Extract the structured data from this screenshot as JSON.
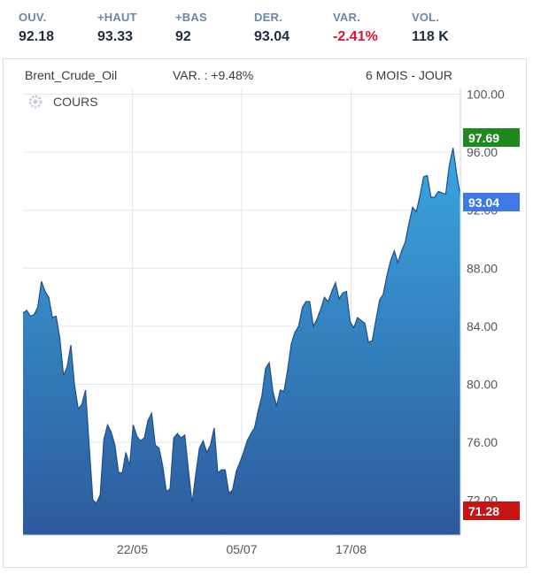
{
  "stats": [
    {
      "label": "OUV.",
      "value": "92.18"
    },
    {
      "label": "+HAUT",
      "value": "93.33"
    },
    {
      "label": "+BAS",
      "value": "92"
    },
    {
      "label": "DER.",
      "value": "93.04"
    },
    {
      "label": "VAR.",
      "value": "-2.41%"
    },
    {
      "label": "VOL.",
      "value": "118 K"
    }
  ],
  "header": {
    "instrument": "Brent_Crude_Oil",
    "variation": "VAR. : +9.48%",
    "period": "6 MOIS - JOUR"
  },
  "legend": {
    "label": "COURS"
  },
  "colors": {
    "high": "#1e8a1e",
    "last": "#3f79e6",
    "low": "#c81414",
    "negative": "#e2112f",
    "area_top": "#3aa6df",
    "area_bottom": "#2d5a9c"
  },
  "chart_data": {
    "type": "area",
    "series": [
      {
        "name": "COURS",
        "values": [
          84.9,
          85.1,
          84.7,
          84.8,
          85.3,
          87.1,
          86.4,
          86.0,
          84.6,
          84.7,
          83.2,
          80.6,
          81.2,
          82.7,
          80.0,
          78.3,
          78.6,
          79.6,
          75.8,
          72.0,
          71.8,
          72.4,
          76.2,
          77.2,
          76.7,
          75.8,
          73.9,
          73.9,
          75.3,
          74.4,
          77.2,
          76.4,
          76.1,
          76.3,
          77.5,
          78.0,
          75.8,
          75.6,
          74.4,
          72.6,
          72.8,
          76.3,
          76.6,
          76.3,
          76.5,
          74.1,
          71.8,
          73.8,
          75.6,
          76.1,
          75.3,
          75.8,
          77.0,
          73.9,
          74.1,
          74.1,
          72.5,
          72.7,
          74.0,
          74.6,
          75.3,
          76.1,
          76.6,
          77.0,
          78.2,
          79.2,
          81.1,
          81.5,
          79.5,
          78.5,
          79.6,
          79.5,
          81.0,
          82.8,
          83.6,
          84.0,
          85.3,
          85.7,
          85.7,
          84.0,
          84.5,
          85.2,
          86.0,
          85.7,
          86.4,
          87.0,
          85.9,
          86.3,
          86.4,
          84.3,
          83.9,
          84.6,
          84.4,
          84.2,
          82.9,
          83.0,
          84.4,
          85.8,
          86.2,
          87.5,
          88.5,
          89.2,
          88.4,
          89.2,
          89.8,
          91.1,
          92.2,
          91.9,
          93.0,
          94.3,
          94.4,
          92.9,
          92.9,
          93.3,
          93.2,
          93.1,
          95.1,
          96.3,
          94.5,
          93.0
        ]
      }
    ],
    "x_tick_labels": [
      "22/05",
      "05/07",
      "17/08"
    ],
    "y_ticks": [
      "72.00",
      "76.00",
      "80.00",
      "84.00",
      "88.00",
      "92.00",
      "96.00",
      "100.00"
    ],
    "ylim": [
      69.6,
      100.4
    ],
    "high": "97.69",
    "last": "93.04",
    "low": "71.28",
    "grid": true
  }
}
